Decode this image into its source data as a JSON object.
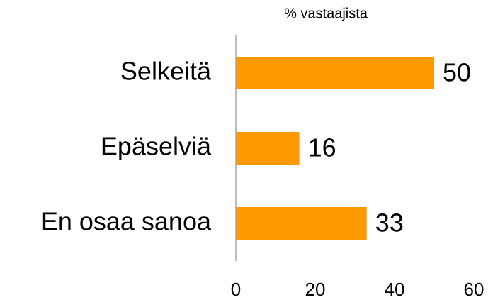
{
  "chart_data": {
    "type": "bar",
    "orientation": "horizontal",
    "title": "% vastaajista",
    "categories": [
      "Selkeitä",
      "Epäselviä",
      "En osaa sanoa"
    ],
    "values": [
      50,
      16,
      33
    ],
    "color": "#ff9900",
    "xlim": [
      0,
      60
    ],
    "xticks": [
      0,
      20,
      40,
      60
    ],
    "grid": false
  }
}
